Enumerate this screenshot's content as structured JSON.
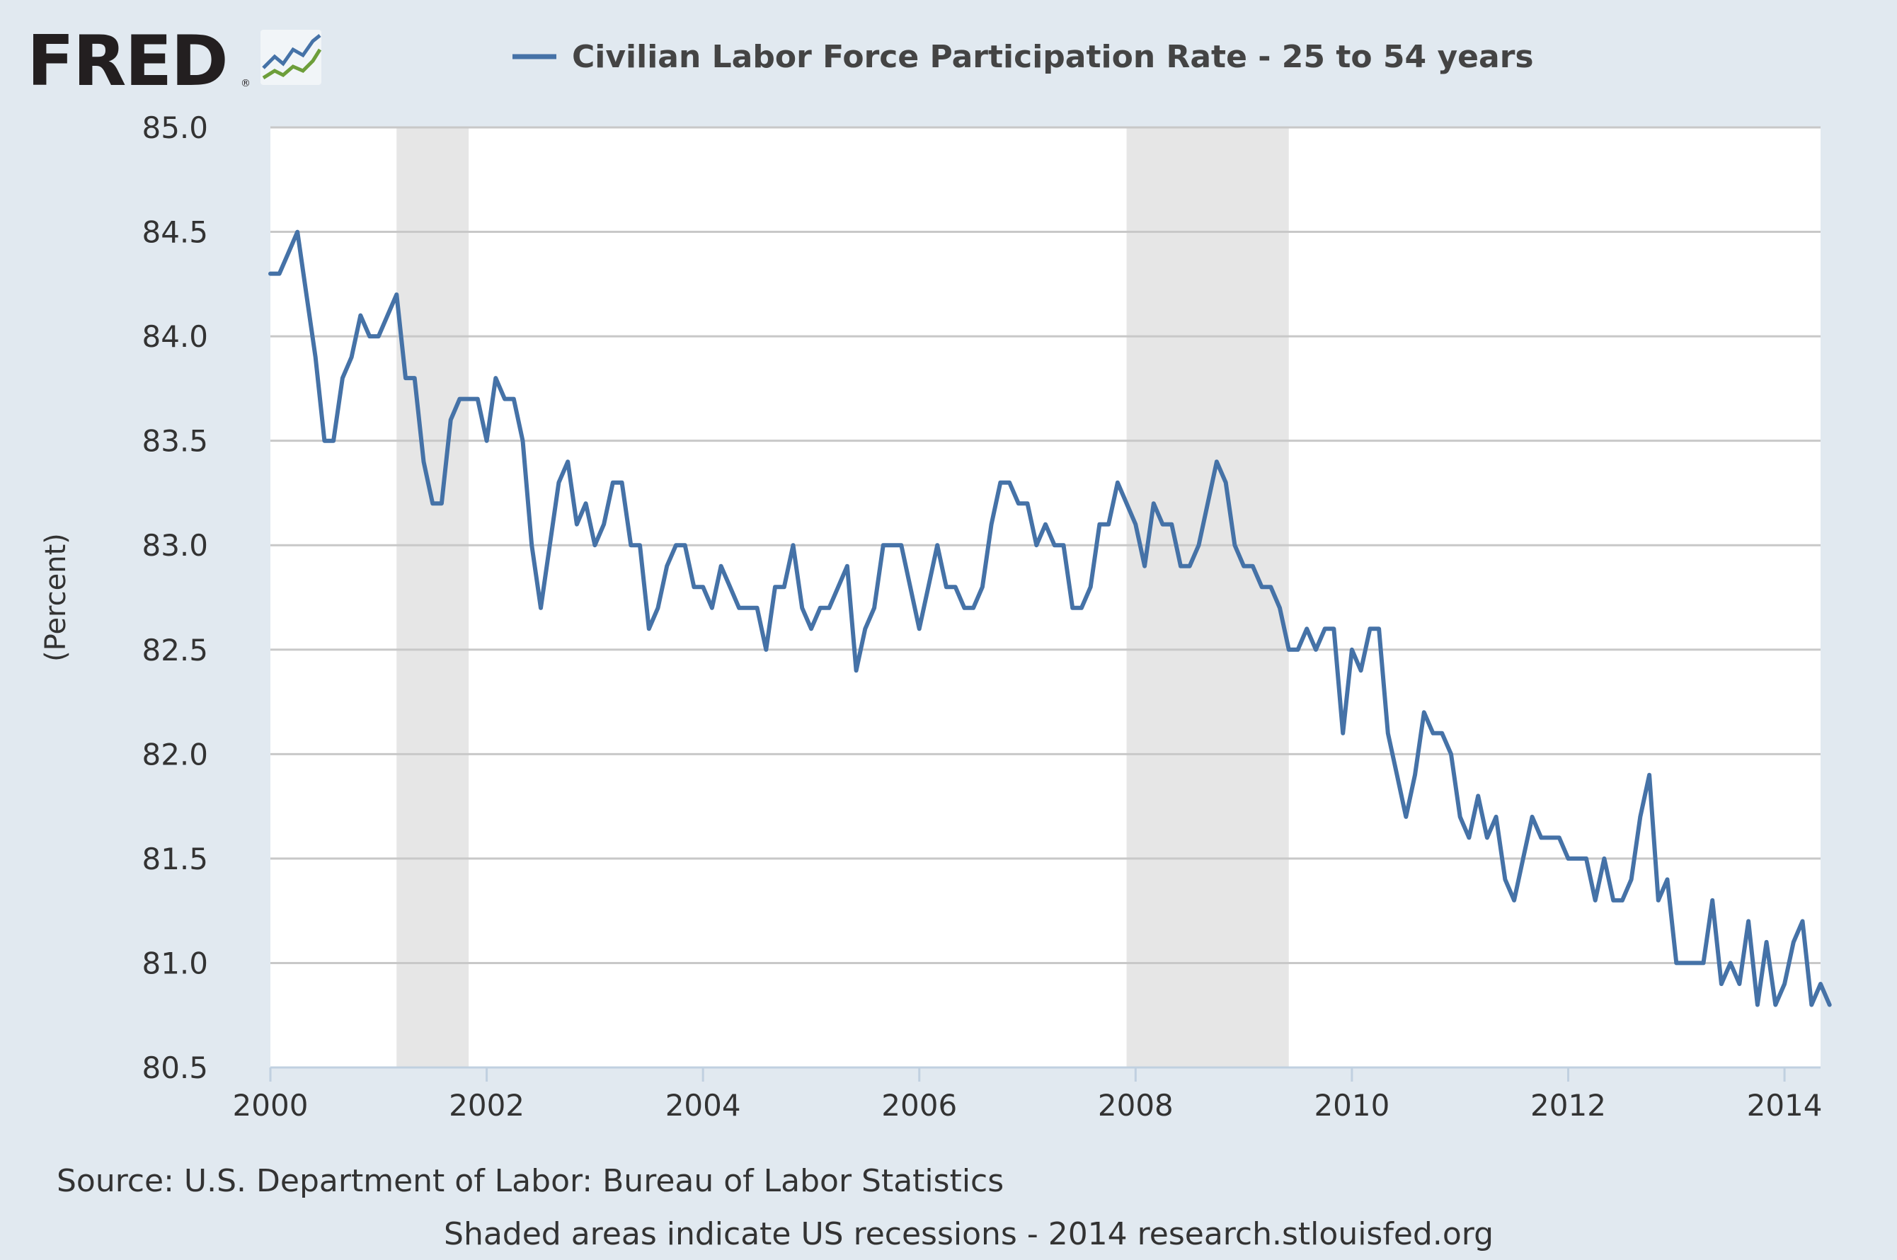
{
  "logo": {
    "text": "FRED",
    "registered": "®"
  },
  "chart_data": {
    "type": "line",
    "title": "",
    "xlabel": "",
    "ylabel": "(Percent)",
    "ylim": [
      80.5,
      85.0
    ],
    "xlim": [
      "2000-01",
      "2014-05"
    ],
    "yticks": [
      "85.0",
      "84.5",
      "84.0",
      "83.5",
      "83.0",
      "82.5",
      "82.0",
      "81.5",
      "81.0",
      "80.5"
    ],
    "xticks": [
      "2000",
      "2002",
      "2004",
      "2006",
      "2008",
      "2010",
      "2012",
      "2014"
    ],
    "grid": true,
    "legend": "top",
    "recessions": [
      {
        "start": "2001-03",
        "end": "2001-11"
      },
      {
        "start": "2007-12",
        "end": "2009-06"
      }
    ],
    "series": [
      {
        "name": "Civilian Labor Force Participation Rate - 25 to 54 years",
        "color": "#4572a7",
        "start": "2000-01",
        "frequency": "monthly",
        "values": [
          84.3,
          84.3,
          84.4,
          84.5,
          84.2,
          83.9,
          83.5,
          83.5,
          83.8,
          83.9,
          84.1,
          84.0,
          84.0,
          84.1,
          84.2,
          83.8,
          83.8,
          83.4,
          83.2,
          83.2,
          83.6,
          83.7,
          83.7,
          83.7,
          83.5,
          83.8,
          83.7,
          83.7,
          83.5,
          83.0,
          82.7,
          83.0,
          83.3,
          83.4,
          83.1,
          83.2,
          83.0,
          83.1,
          83.3,
          83.3,
          83.0,
          83.0,
          82.6,
          82.7,
          82.9,
          83.0,
          83.0,
          82.8,
          82.8,
          82.7,
          82.9,
          82.8,
          82.7,
          82.7,
          82.7,
          82.5,
          82.8,
          82.8,
          83.0,
          82.7,
          82.6,
          82.7,
          82.7,
          82.8,
          82.9,
          82.4,
          82.6,
          82.7,
          83.0,
          83.0,
          83.0,
          82.8,
          82.6,
          82.8,
          83.0,
          82.8,
          82.8,
          82.7,
          82.7,
          82.8,
          83.1,
          83.3,
          83.3,
          83.2,
          83.2,
          83.0,
          83.1,
          83.0,
          83.0,
          82.7,
          82.7,
          82.8,
          83.1,
          83.1,
          83.3,
          83.2,
          83.1,
          82.9,
          83.2,
          83.1,
          83.1,
          82.9,
          82.9,
          83.0,
          83.2,
          83.4,
          83.3,
          83.0,
          82.9,
          82.9,
          82.8,
          82.8,
          82.7,
          82.5,
          82.5,
          82.6,
          82.5,
          82.6,
          82.6,
          82.1,
          82.5,
          82.4,
          82.6,
          82.6,
          82.1,
          81.9,
          81.7,
          81.9,
          82.2,
          82.1,
          82.1,
          82.0,
          81.7,
          81.6,
          81.8,
          81.6,
          81.7,
          81.4,
          81.3,
          81.5,
          81.7,
          81.6,
          81.6,
          81.6,
          81.5,
          81.5,
          81.5,
          81.3,
          81.5,
          81.3,
          81.3,
          81.4,
          81.7,
          81.9,
          81.3,
          81.4,
          81.0,
          81.0,
          81.0,
          81.0,
          81.3,
          80.9,
          81.0,
          80.9,
          81.2,
          80.8,
          81.1,
          80.8,
          80.9,
          81.1,
          81.2,
          80.8,
          80.9,
          80.8
        ]
      }
    ]
  },
  "footer": {
    "source": "Source: U.S. Department of Labor: Bureau of Labor Statistics",
    "note": "Shaded areas indicate US recessions - 2014 research.stlouisfed.org"
  }
}
